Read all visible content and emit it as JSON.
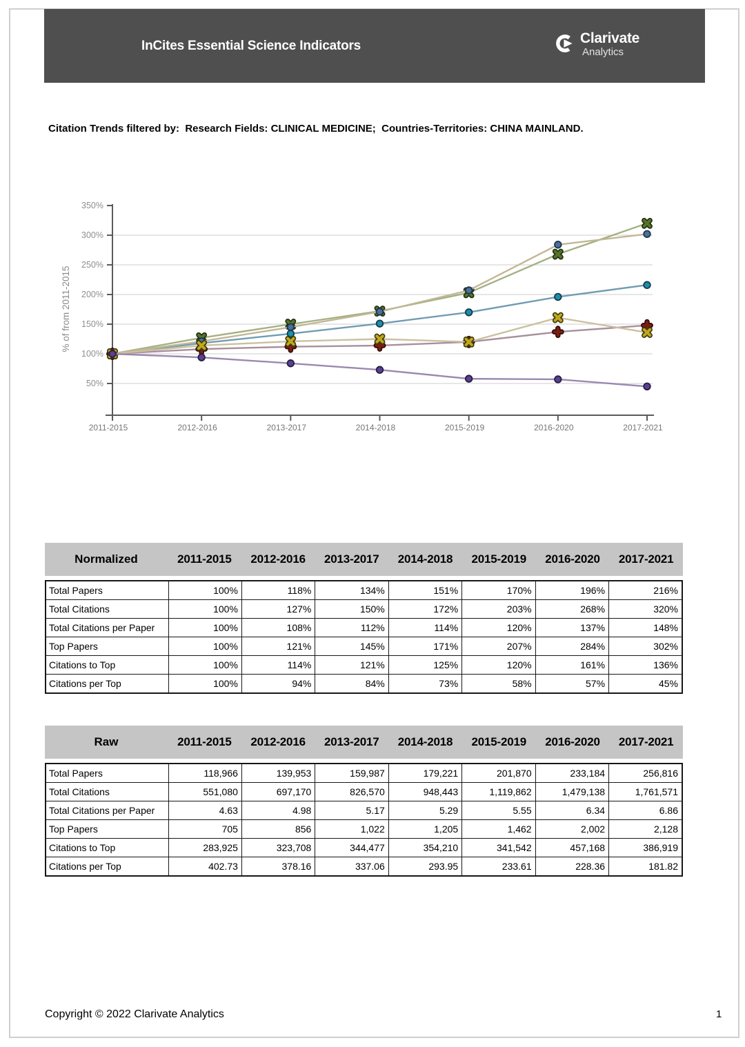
{
  "header": {
    "title": "InCites Essential Science Indicators",
    "brand_name": "Clarivate",
    "brand_sub": "Analytics",
    "bar_color": "#4f4f4f"
  },
  "filter_line": "Citation Trends filtered by:  Research Fields: CLINICAL MEDICINE;  Countries-Territories: CHINA MAINLAND.",
  "chart_data": {
    "type": "line",
    "title": "",
    "ylabel": "% of from 2011-2015",
    "xlabel": "",
    "categories": [
      "2011-2015",
      "2012-2016",
      "2013-2017",
      "2014-2018",
      "2015-2019",
      "2016-2020",
      "2017-2021"
    ],
    "yticks_percent": [
      350,
      300,
      250,
      200,
      150,
      100,
      50
    ],
    "ylim": [
      0,
      350
    ],
    "grid": true,
    "legend_position": "none",
    "series": [
      {
        "name": "Total Papers",
        "marker": "circle",
        "line_color": "#6f9cb3",
        "marker_color": "#1d8fa5",
        "marker_edge": "#123b4d",
        "values": [
          100,
          118,
          134,
          151,
          170,
          196,
          216
        ]
      },
      {
        "name": "Total Citations",
        "marker": "x",
        "line_color": "#a3b183",
        "marker_color": "#55742a",
        "marker_edge": "#222f10",
        "values": [
          100,
          127,
          150,
          172,
          203,
          268,
          320
        ]
      },
      {
        "name": "Total Citations per Paper",
        "marker": "plus",
        "line_color": "#a88f9b",
        "marker_color": "#7b1d12",
        "marker_edge": "#2d0b06",
        "values": [
          100,
          108,
          112,
          114,
          120,
          137,
          148
        ]
      },
      {
        "name": "Top Papers",
        "marker": "circle",
        "line_color": "#c2b795",
        "marker_color": "#4c7095",
        "marker_edge": "#1c3450",
        "values": [
          100,
          121,
          145,
          171,
          207,
          284,
          302
        ]
      },
      {
        "name": "Citations to Top",
        "marker": "x",
        "line_color": "#cbc09f",
        "marker_color": "#bfa81e",
        "marker_edge": "#3f3a0e",
        "values": [
          100,
          114,
          121,
          125,
          120,
          161,
          136
        ]
      },
      {
        "name": "Citations per Top",
        "marker": "circle",
        "line_color": "#9a89af",
        "marker_color": "#59418e",
        "marker_edge": "#271c46",
        "values": [
          100,
          94,
          84,
          73,
          58,
          57,
          45
        ]
      }
    ]
  },
  "tables": [
    {
      "title": "Normalized",
      "columns": [
        "2011-2015",
        "2012-2016",
        "2013-2017",
        "2014-2018",
        "2015-2019",
        "2016-2020",
        "2017-2021"
      ],
      "rows": [
        {
          "label": "Total Papers",
          "values": [
            "100%",
            "118%",
            "134%",
            "151%",
            "170%",
            "196%",
            "216%"
          ]
        },
        {
          "label": "Total Citations",
          "values": [
            "100%",
            "127%",
            "150%",
            "172%",
            "203%",
            "268%",
            "320%"
          ]
        },
        {
          "label": "Total Citations per Paper",
          "values": [
            "100%",
            "108%",
            "112%",
            "114%",
            "120%",
            "137%",
            "148%"
          ]
        },
        {
          "label": "Top Papers",
          "values": [
            "100%",
            "121%",
            "145%",
            "171%",
            "207%",
            "284%",
            "302%"
          ]
        },
        {
          "label": "Citations to Top",
          "values": [
            "100%",
            "114%",
            "121%",
            "125%",
            "120%",
            "161%",
            "136%"
          ]
        },
        {
          "label": "Citations per Top",
          "values": [
            "100%",
            "94%",
            "84%",
            "73%",
            "58%",
            "57%",
            "45%"
          ]
        }
      ]
    },
    {
      "title": "Raw",
      "columns": [
        "2011-2015",
        "2012-2016",
        "2013-2017",
        "2014-2018",
        "2015-2019",
        "2016-2020",
        "2017-2021"
      ],
      "rows": [
        {
          "label": "Total Papers",
          "values": [
            "118,966",
            "139,953",
            "159,987",
            "179,221",
            "201,870",
            "233,184",
            "256,816"
          ]
        },
        {
          "label": "Total Citations",
          "values": [
            "551,080",
            "697,170",
            "826,570",
            "948,443",
            "1,119,862",
            "1,479,138",
            "1,761,571"
          ]
        },
        {
          "label": "Total Citations per Paper",
          "values": [
            "4.63",
            "4.98",
            "5.17",
            "5.29",
            "5.55",
            "6.34",
            "6.86"
          ]
        },
        {
          "label": "Top Papers",
          "values": [
            "705",
            "856",
            "1,022",
            "1,205",
            "1,462",
            "2,002",
            "2,128"
          ]
        },
        {
          "label": "Citations to Top",
          "values": [
            "283,925",
            "323,708",
            "344,477",
            "354,210",
            "341,542",
            "457,168",
            "386,919"
          ]
        },
        {
          "label": "Citations per Top",
          "values": [
            "402.73",
            "378.16",
            "337.06",
            "293.95",
            "233.61",
            "228.36",
            "181.82"
          ]
        }
      ]
    }
  ],
  "page": {
    "copyright": "Copyright © 2022 Clarivate Analytics",
    "page_number": "1"
  }
}
